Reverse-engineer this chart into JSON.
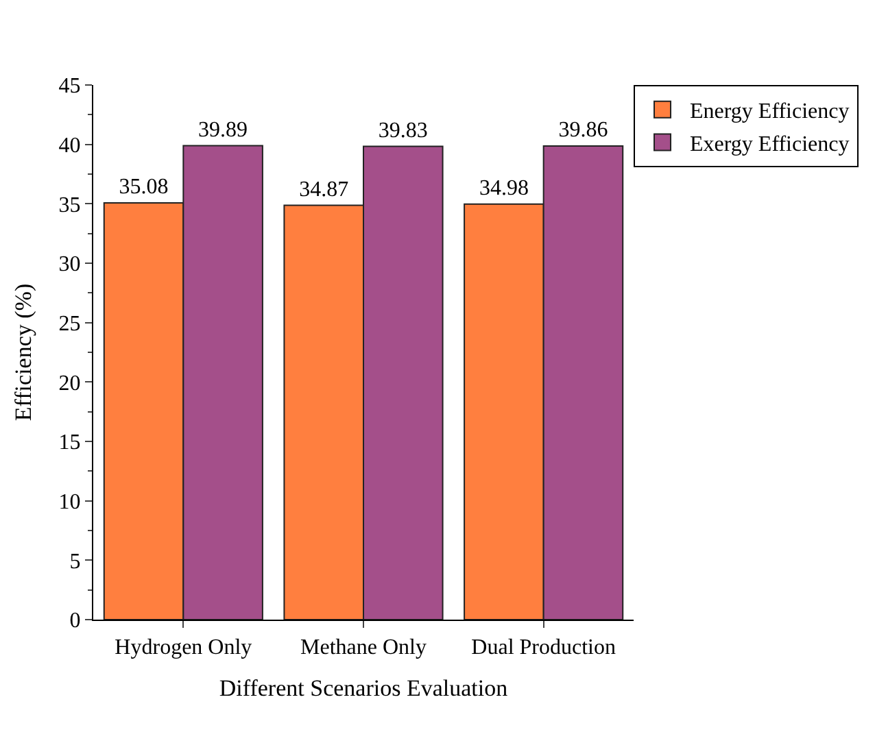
{
  "chart_data": {
    "type": "bar",
    "xlabel": "Different Scenarios Evaluation",
    "ylabel": "Efficiency (%)",
    "categories": [
      "Hydrogen Only",
      "Methane Only",
      "Dual Production"
    ],
    "series": [
      {
        "name": "Energy Efficiency",
        "color": "#ff7f3f",
        "values": [
          35.08,
          34.87,
          34.98
        ]
      },
      {
        "name": "Exergy Efficiency",
        "color": "#a44f8a",
        "values": [
          39.89,
          39.83,
          39.86
        ]
      }
    ],
    "ylim": [
      0,
      45
    ],
    "yticks": [
      0,
      5,
      10,
      15,
      20,
      25,
      30,
      35,
      40,
      45
    ],
    "data_labels": true,
    "legend": "top right"
  }
}
